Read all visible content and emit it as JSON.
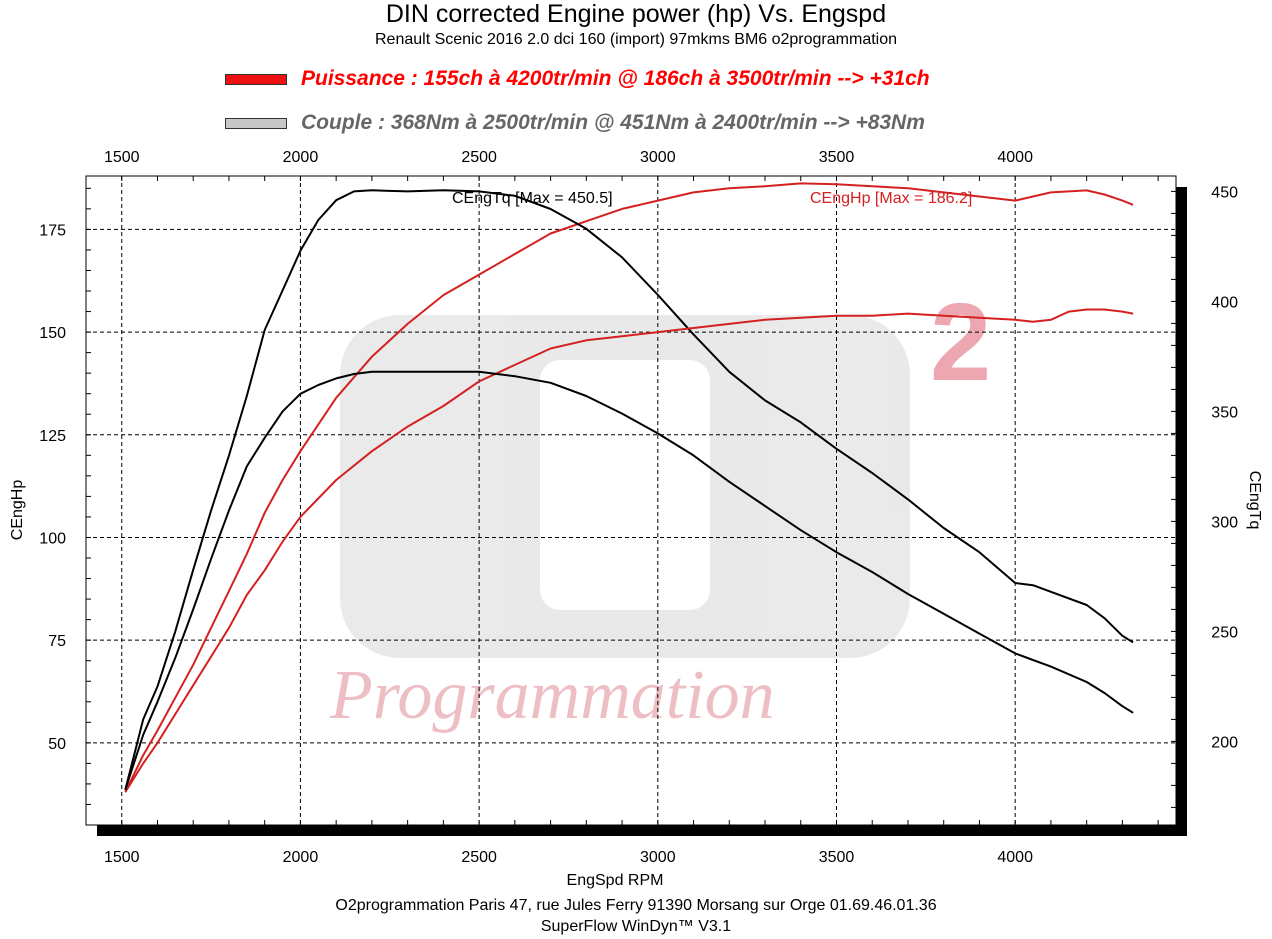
{
  "header": {
    "title": "DIN corrected Engine power (hp) Vs. Engspd",
    "subtitle": "Renault Scenic 2016 2.0 dci 160 (import) 97mkms BM6 o2programmation"
  },
  "legend": [
    {
      "text": "Puissance : 155ch à 4200tr/min @ 186ch à 3500tr/min  --> +31ch",
      "color": "#ff0000",
      "swatch": "#ee1111"
    },
    {
      "text": "Couple :  368Nm à 2500tr/min @ 451Nm à 2400tr/min --> +83Nm",
      "color": "#666666",
      "swatch": "#c8c8c8"
    }
  ],
  "footer": {
    "line1": "O2programmation Paris 47, rue Jules Ferry 91390 Morsang sur Orge 01.69.46.01.36",
    "line2": "SuperFlow WinDyn™ V3.1"
  },
  "colors": {
    "power": "#d42020",
    "torque": "#000000",
    "background": "#ffffff"
  },
  "chart_data": {
    "type": "line",
    "xlabel": "EngSpd RPM",
    "ylabel": "CEngHp",
    "y2label": "CEngTq",
    "xlim": [
      1400,
      4450
    ],
    "xticks": [
      1500,
      2000,
      2500,
      3000,
      3500,
      4000
    ],
    "ylim": [
      30,
      188
    ],
    "yticks": [
      50,
      75,
      100,
      125,
      150,
      175
    ],
    "y2lim": [
      162,
      457
    ],
    "y2ticks": [
      200,
      250,
      300,
      350,
      400,
      450
    ],
    "grid": true,
    "annotations": [
      {
        "text": "CEngTq [Max = 450.5]",
        "color": "#000000"
      },
      {
        "text": "CEngHp [Max = 186.2]",
        "color": "#d42020"
      }
    ],
    "series": [
      {
        "name": "CEngHp",
        "axis": "left",
        "color": "#d42020",
        "x": [
          1510,
          1560,
          1600,
          1650,
          1700,
          1750,
          1800,
          1850,
          1900,
          1950,
          2000,
          2100,
          2200,
          2300,
          2400,
          2500,
          2600,
          2700,
          2800,
          2900,
          2950,
          3000,
          3100,
          3200,
          3300,
          3400,
          3500,
          3600,
          3700,
          3800,
          3900,
          4000,
          4050,
          4100,
          4200,
          4250,
          4300,
          4330
        ],
        "values": [
          38,
          47,
          53,
          61,
          69,
          78,
          87,
          96,
          106,
          114,
          121,
          134,
          144,
          152,
          159,
          164,
          169,
          174,
          177,
          180,
          181,
          182,
          184,
          185,
          185.5,
          186.2,
          186,
          185.5,
          185,
          184,
          183,
          182,
          183,
          184,
          184.5,
          183.5,
          182,
          181
        ]
      },
      {
        "name": "CEngTq",
        "axis": "right",
        "color": "#000000",
        "x": [
          1510,
          1560,
          1600,
          1650,
          1700,
          1750,
          1800,
          1850,
          1900,
          1950,
          2000,
          2050,
          2100,
          2150,
          2200,
          2300,
          2400,
          2500,
          2600,
          2700,
          2800,
          2900,
          3000,
          3100,
          3200,
          3300,
          3400,
          3500,
          3600,
          3700,
          3800,
          3900,
          4000,
          4050,
          4100,
          4200,
          4250,
          4300,
          4330
        ],
        "values": [
          178,
          210,
          225,
          250,
          278,
          305,
          330,
          357,
          387,
          405,
          423,
          437,
          446,
          450,
          450.5,
          450,
          450.5,
          450,
          448,
          442,
          433,
          420,
          403,
          385,
          368,
          355,
          345,
          333,
          322,
          310,
          297,
          286,
          272,
          271,
          268,
          262,
          256,
          248,
          245
        ]
      },
      {
        "name": "CEngHp",
        "axis": "left",
        "color": "#d42020",
        "x": [
          1510,
          1560,
          1600,
          1650,
          1700,
          1750,
          1800,
          1850,
          1900,
          1950,
          2000,
          2100,
          2200,
          2300,
          2400,
          2500,
          2600,
          2700,
          2800,
          2900,
          3000,
          3100,
          3200,
          3300,
          3400,
          3500,
          3600,
          3700,
          3800,
          3900,
          4000,
          4050,
          4100,
          4150,
          4200,
          4250,
          4300,
          4330
        ],
        "values": [
          38,
          45,
          50,
          57,
          64,
          71,
          78,
          86,
          92,
          99,
          105,
          114,
          121,
          127,
          132,
          138,
          142,
          146,
          148,
          149,
          150,
          151,
          152,
          153,
          153.5,
          154,
          154,
          154.5,
          154,
          153.5,
          153,
          152.5,
          153,
          155,
          155.5,
          155.5,
          155,
          154.5
        ]
      },
      {
        "name": "CEngTq",
        "axis": "right",
        "color": "#000000",
        "x": [
          1510,
          1560,
          1600,
          1650,
          1700,
          1750,
          1800,
          1850,
          1900,
          1950,
          2000,
          2050,
          2100,
          2150,
          2200,
          2300,
          2400,
          2500,
          2600,
          2700,
          2800,
          2900,
          3000,
          3100,
          3200,
          3300,
          3400,
          3500,
          3600,
          3700,
          3800,
          3900,
          4000,
          4050,
          4100,
          4200,
          4250,
          4300,
          4330
        ],
        "values": [
          178,
          203,
          218,
          238,
          260,
          283,
          305,
          325,
          338,
          350,
          358,
          362,
          365,
          367,
          368,
          368,
          368,
          368,
          366,
          363,
          357,
          349,
          340,
          330,
          318,
          307,
          296,
          286,
          277,
          267,
          258,
          249,
          240,
          237,
          234,
          227,
          222,
          216,
          213
        ]
      }
    ]
  }
}
